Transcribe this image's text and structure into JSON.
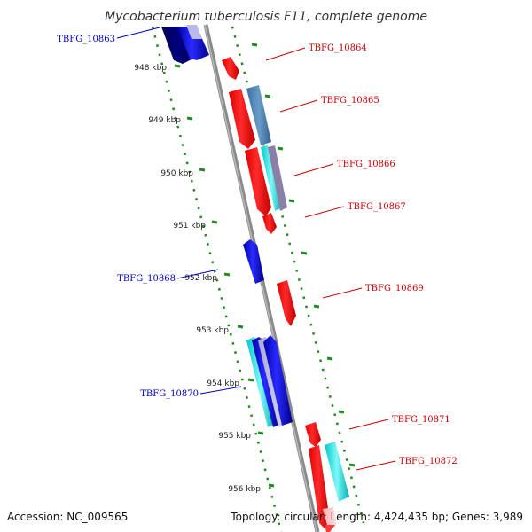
{
  "title": "Mycobacterium tuberculosis F11, complete genome",
  "footer": {
    "accession": "Accession: NC_009565",
    "summary": "Topology: circular; Length: 4,424,435 bp; Genes: 3,989"
  },
  "colors": {
    "forward_label": "#cc0000",
    "reverse_label": "#0000cc",
    "backbone": "#888888",
    "tick": "#228b22"
  },
  "scale_ticks": [
    "948 kbp",
    "949 kbp",
    "950 kbp",
    "951 kbp",
    "952 kbp",
    "953 kbp",
    "954 kbp",
    "955 kbp",
    "956 kbp"
  ],
  "gene_labels": {
    "forward": [
      "TBFG_10864",
      "TBFG_10865",
      "TBFG_10866",
      "TBFG_10867",
      "TBFG_10869",
      "TBFG_10871",
      "TBFG_10872"
    ],
    "reverse": [
      "TBFG_10863",
      "TBFG_10868",
      "TBFG_10870"
    ]
  }
}
